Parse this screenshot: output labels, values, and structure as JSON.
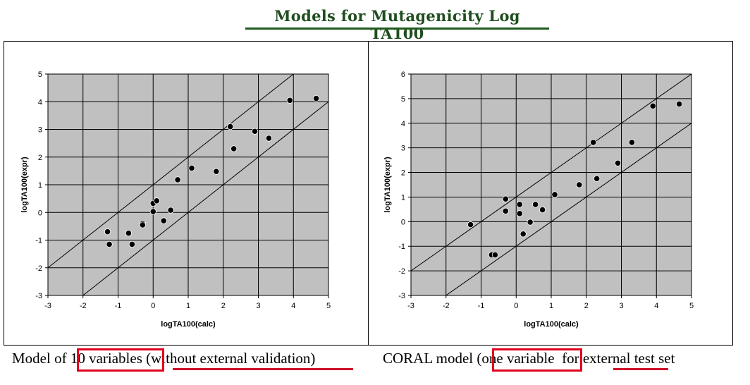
{
  "title": "Models for  Mutagenicity Log  TA100",
  "chart_data": [
    {
      "type": "scatter",
      "xlabel": "logTA100(calc)",
      "ylabel": "logTA100(expr)",
      "xlim": [
        -3,
        5
      ],
      "ylim": [
        -3,
        5
      ],
      "xticks": [
        "-3",
        "-2",
        "-1",
        "0",
        "1",
        "2",
        "3",
        "4",
        "5"
      ],
      "yticks": [
        "-3",
        "-2",
        "-1",
        "0",
        "1",
        "2",
        "3",
        "4",
        "5"
      ],
      "grid": true,
      "background": "#c0c0c0",
      "reference_lines": [
        {
          "offset": 1
        },
        {
          "offset": -1
        }
      ],
      "points": [
        [
          -1.3,
          -0.7
        ],
        [
          -1.25,
          -1.15
        ],
        [
          -0.7,
          -0.75
        ],
        [
          -0.6,
          -1.15
        ],
        [
          -0.3,
          -0.4
        ],
        [
          -0.3,
          -0.45
        ],
        [
          0.0,
          0.33
        ],
        [
          0.1,
          0.42
        ],
        [
          0.0,
          0.03
        ],
        [
          0.3,
          -0.3
        ],
        [
          0.5,
          0.08
        ],
        [
          0.7,
          1.18
        ],
        [
          1.1,
          1.6
        ],
        [
          1.8,
          1.48
        ],
        [
          2.2,
          3.1
        ],
        [
          2.3,
          2.3
        ],
        [
          2.9,
          2.93
        ],
        [
          3.3,
          2.68
        ],
        [
          3.9,
          4.05
        ],
        [
          4.65,
          4.12
        ]
      ]
    },
    {
      "type": "scatter",
      "xlabel": "logTA100(calc)",
      "ylabel": "logTA100(expr)",
      "xlim": [
        -3,
        5
      ],
      "ylim": [
        -3,
        6
      ],
      "xticks": [
        "-3",
        "-2",
        "-1",
        "0",
        "1",
        "2",
        "3",
        "4",
        "5"
      ],
      "yticks": [
        "-3",
        "-2",
        "-1",
        "0",
        "1",
        "2",
        "3",
        "4",
        "5",
        "6"
      ],
      "grid": true,
      "background": "#c0c0c0",
      "reference_lines": [
        {
          "offset": 1
        },
        {
          "offset": -1
        }
      ],
      "points": [
        [
          -1.3,
          -0.12
        ],
        [
          -0.7,
          -1.35
        ],
        [
          -0.6,
          -1.35
        ],
        [
          -0.3,
          0.92
        ],
        [
          -0.3,
          0.43
        ],
        [
          0.1,
          0.7
        ],
        [
          0.1,
          0.33
        ],
        [
          0.2,
          -0.5
        ],
        [
          0.4,
          -0.02
        ],
        [
          0.55,
          0.7
        ],
        [
          0.75,
          0.48
        ],
        [
          1.1,
          1.1
        ],
        [
          1.8,
          1.5
        ],
        [
          2.2,
          3.22
        ],
        [
          2.3,
          1.75
        ],
        [
          2.9,
          2.38
        ],
        [
          3.3,
          3.22
        ],
        [
          3.9,
          4.7
        ],
        [
          4.65,
          4.78
        ]
      ]
    }
  ],
  "captions": {
    "left": {
      "pre": "Model of ",
      "boxed": "10 variables",
      "mid": " (",
      "underlined": "without external validation",
      "post": ")"
    },
    "right": {
      "pre": "CORAL model (",
      "boxed": "one variable",
      "mid": "  for ",
      "underlined": "external",
      "post": " test set"
    }
  },
  "colors": {
    "title": "#1f4d1f",
    "highlight": "#e0001c",
    "plot_bg": "#c0c0c0"
  }
}
